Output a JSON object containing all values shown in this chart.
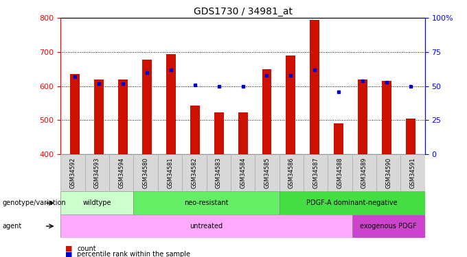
{
  "title": "GDS1730 / 34981_at",
  "samples": [
    "GSM34592",
    "GSM34593",
    "GSM34594",
    "GSM34580",
    "GSM34581",
    "GSM34582",
    "GSM34583",
    "GSM34584",
    "GSM34585",
    "GSM34586",
    "GSM34587",
    "GSM34588",
    "GSM34589",
    "GSM34590",
    "GSM34591"
  ],
  "counts": [
    635,
    620,
    620,
    678,
    693,
    542,
    522,
    522,
    650,
    690,
    795,
    490,
    620,
    615,
    505
  ],
  "percentile_ranks": [
    57,
    52,
    52,
    60,
    62,
    51,
    50,
    50,
    58,
    58,
    62,
    46,
    54,
    53,
    50
  ],
  "ylim_left": [
    400,
    800
  ],
  "ylim_right": [
    0,
    100
  ],
  "yticks_left": [
    400,
    500,
    600,
    700,
    800
  ],
  "yticks_right": [
    0,
    25,
    50,
    75,
    100
  ],
  "bar_color": "#cc1100",
  "dot_color": "#0000cc",
  "background_color": "#ffffff",
  "plot_bg_color": "#ffffff",
  "genotype_groups": [
    {
      "label": "wildtype",
      "start": 0,
      "end": 3,
      "color": "#ccffcc"
    },
    {
      "label": "neo-resistant",
      "start": 3,
      "end": 9,
      "color": "#66ee66"
    },
    {
      "label": "PDGF-A dominant-negative",
      "start": 9,
      "end": 15,
      "color": "#44dd44"
    }
  ],
  "agent_groups": [
    {
      "label": "untreated",
      "start": 0,
      "end": 12,
      "color": "#ffaaff"
    },
    {
      "label": "exogenous PDGF",
      "start": 12,
      "end": 15,
      "color": "#cc44cc"
    }
  ],
  "genotype_label": "genotype/variation",
  "agent_label": "agent",
  "legend_count_label": "count",
  "legend_pct_label": "percentile rank within the sample",
  "bar_width": 0.4
}
